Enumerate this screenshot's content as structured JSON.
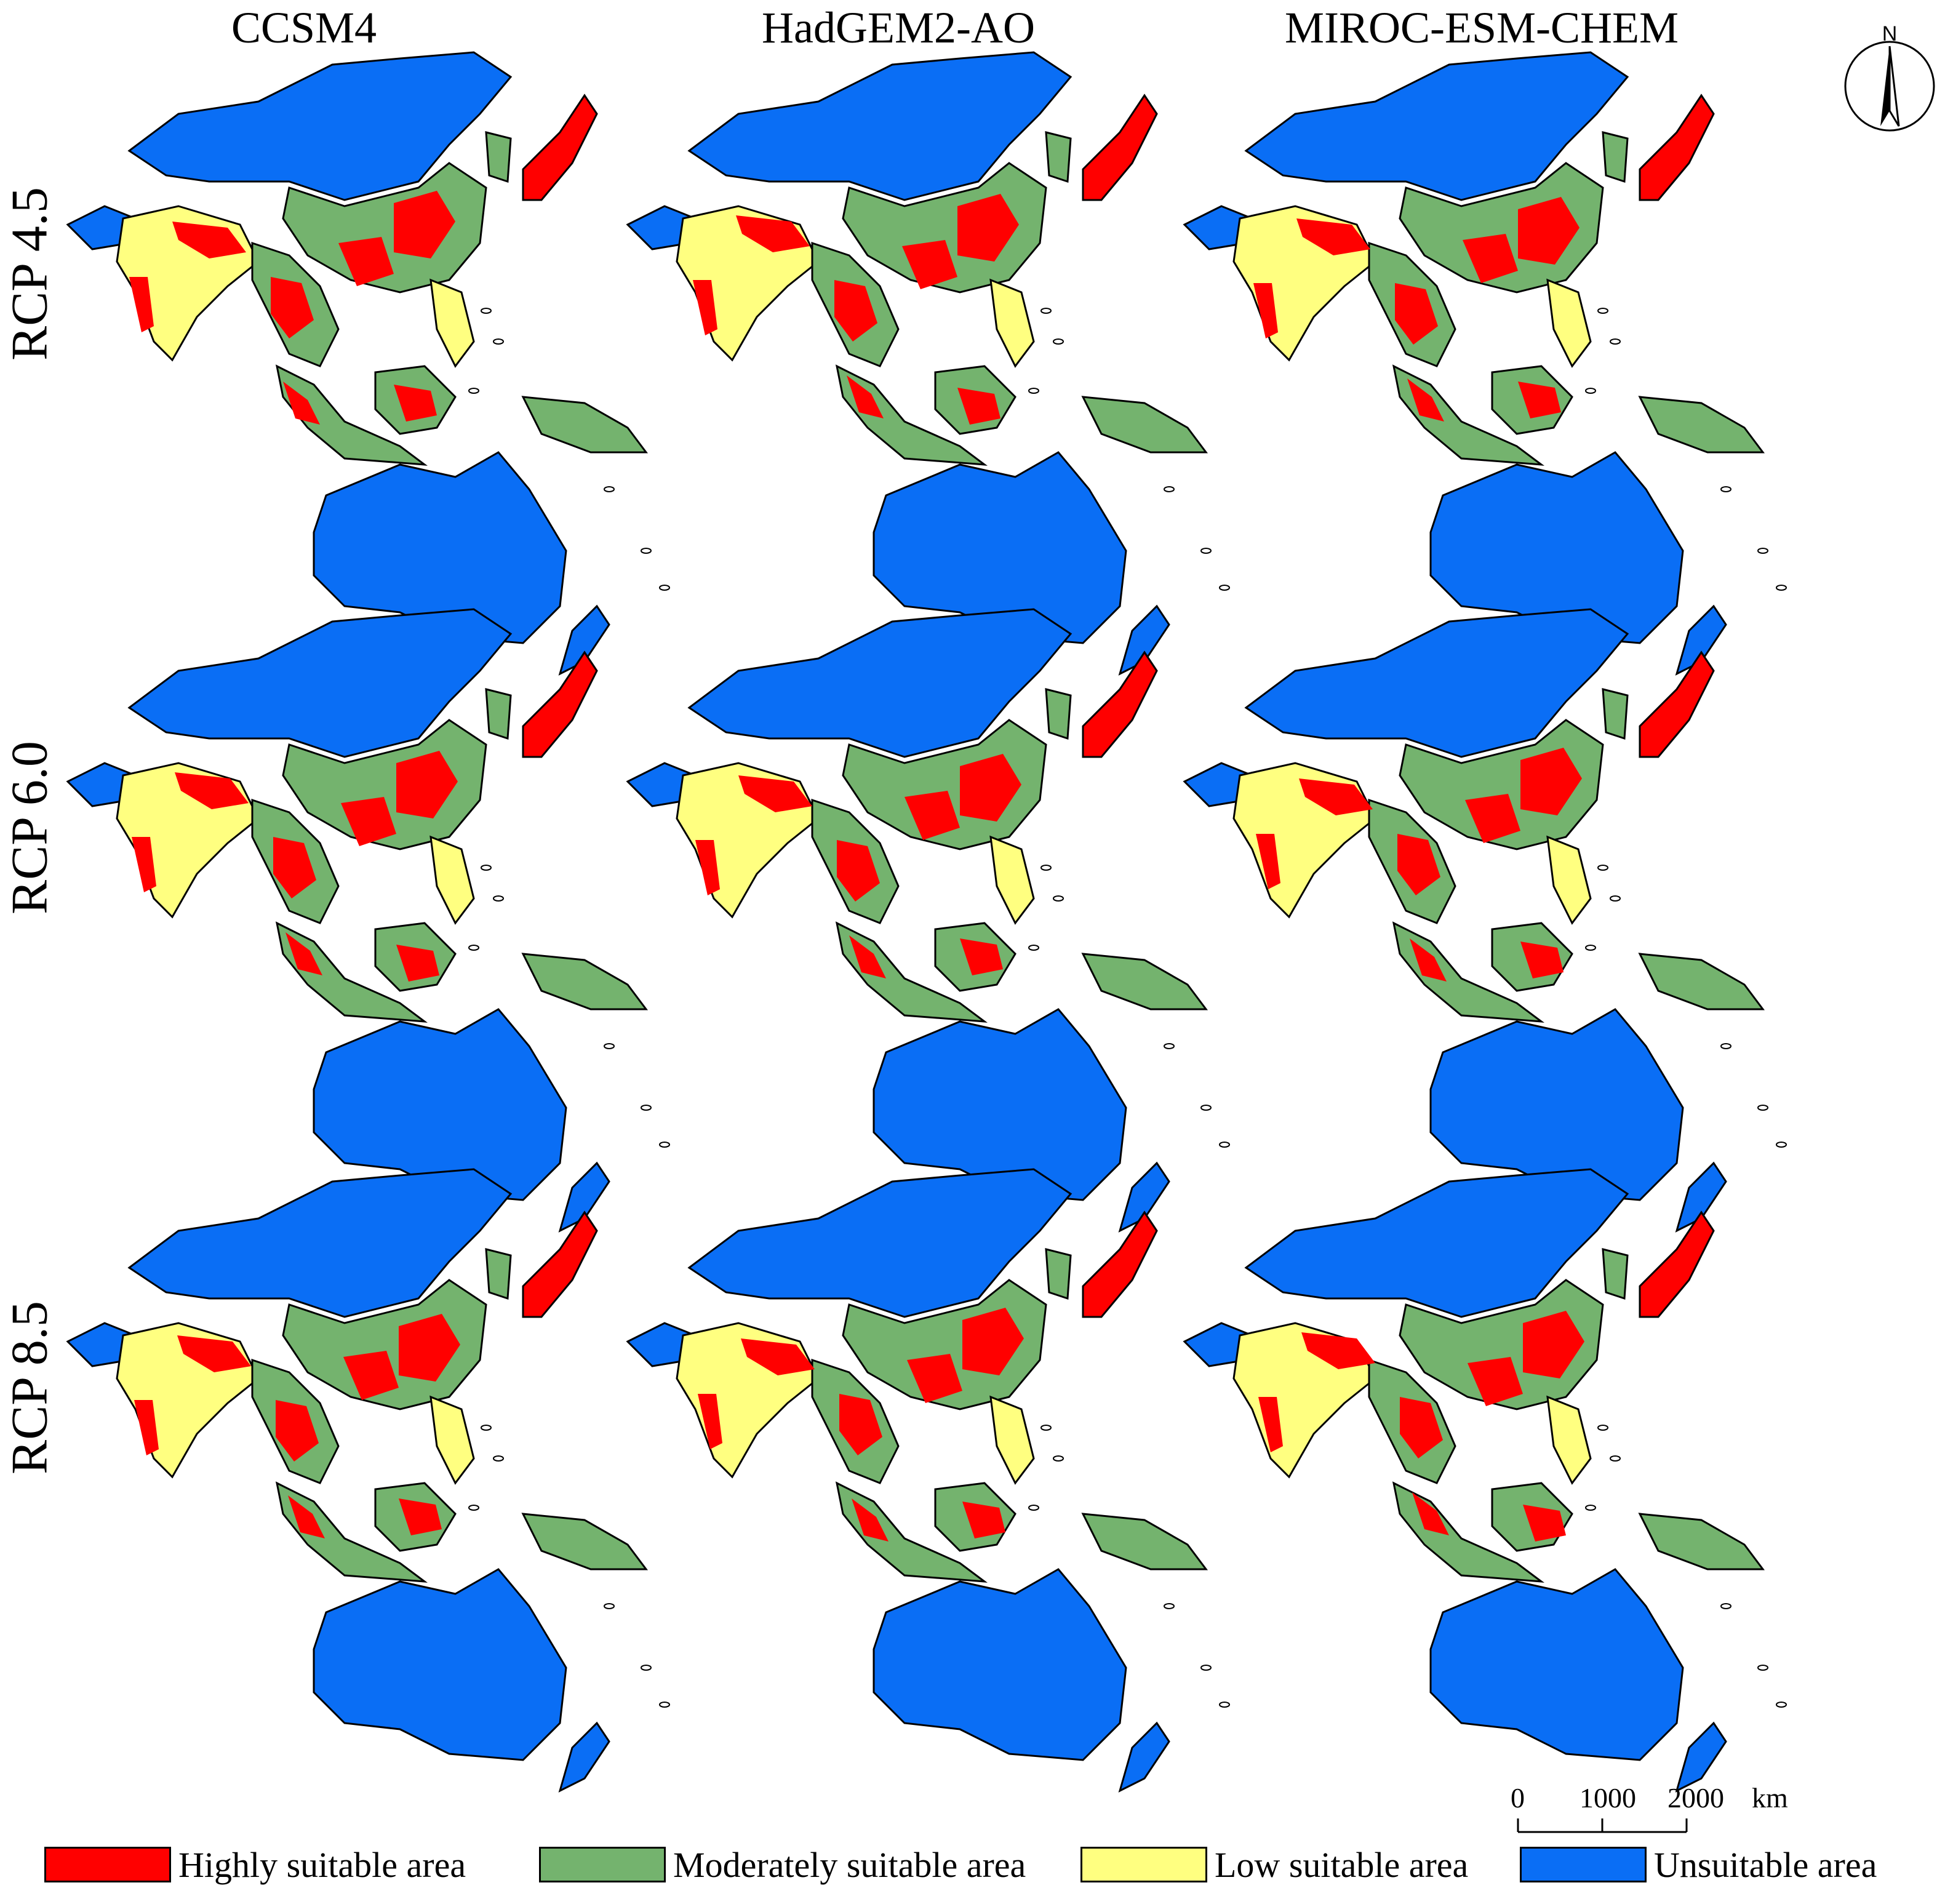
{
  "columns": [
    {
      "label": "CCSM4"
    },
    {
      "label": "HadGEM2-AO"
    },
    {
      "label": "MIROC-ESM-CHEM"
    }
  ],
  "rows": [
    {
      "label": "RCP 4.5"
    },
    {
      "label": "RCP 6.0"
    },
    {
      "label": "RCP 8.5"
    }
  ],
  "north_arrow": {
    "label": "N"
  },
  "scale_bar": {
    "ticks": [
      "0",
      "1000",
      "2000"
    ],
    "unit": "km"
  },
  "legend": [
    {
      "label": "Highly suitable area",
      "color": "#ff0000"
    },
    {
      "label": "Moderately suitable area",
      "color": "#74b36e"
    },
    {
      "label": "Low suitable area",
      "color": "#ffff80"
    },
    {
      "label": "Unsuitable area",
      "color": "#0a6ef5"
    }
  ],
  "colors": {
    "high": "#ff0000",
    "moderate": "#74b36e",
    "low": "#ffff80",
    "unsuitable": "#0a6ef5",
    "outline": "#000000"
  }
}
